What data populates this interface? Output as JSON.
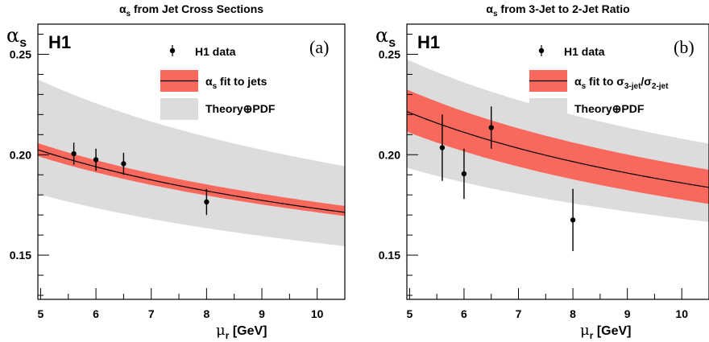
{
  "chart_data": [
    {
      "type": "line",
      "title": "αs from Jet Cross Sections",
      "ylabel": "αs",
      "xlabel": "μr [GeV]",
      "experiment": "H1",
      "panel_tag": "(a)",
      "xlim": [
        4.95,
        10.5
      ],
      "ylim": [
        0.128,
        0.265
      ],
      "yticks": [
        "0.15",
        "0.20",
        "0.25"
      ],
      "xticks": [
        "5",
        "6",
        "7",
        "8",
        "9",
        "10"
      ],
      "legend": [
        "H1 data",
        "αs fit to jets",
        "Theory⊕PDF"
      ],
      "legend_placement": "top-right",
      "data": {
        "x": [
          5.6,
          6.0,
          6.5,
          8.0
        ],
        "y": [
          0.2005,
          0.1975,
          0.1955,
          0.1765
        ],
        "err": [
          0.0055,
          0.0055,
          0.0055,
          0.0065
        ]
      },
      "fit": {
        "x": [
          4.95,
          10.5
        ],
        "central": [
          0.2025,
          0.1713
        ],
        "exp_band_lo": [
          0.1993,
          0.1695
        ],
        "exp_band_hi": [
          0.2058,
          0.1745
        ],
        "theory_band_lo": [
          0.1805,
          0.1545
        ],
        "theory_band_hi": [
          0.2375,
          0.1943
        ]
      },
      "colors": {
        "exp_band": "#f9685c",
        "theory_band": "#dcdcdc",
        "line": "#000000"
      }
    },
    {
      "type": "line",
      "title": "αs from 3-Jet to 2-Jet Ratio",
      "ylabel": "αs",
      "xlabel": "μr [GeV]",
      "experiment": "H1",
      "panel_tag": "(b)",
      "xlim": [
        4.95,
        10.5
      ],
      "ylim": [
        0.128,
        0.265
      ],
      "yticks": [
        "0.15",
        "0.20",
        "0.25"
      ],
      "xticks": [
        "5",
        "6",
        "7",
        "8",
        "9",
        "10"
      ],
      "legend": [
        "H1 data",
        "αs fit to σ3-jet/σ2-jet",
        "Theory⊕PDF"
      ],
      "legend_placement": "top-right",
      "data": {
        "x": [
          5.6,
          6.0,
          6.5,
          8.0
        ],
        "y": [
          0.2035,
          0.1905,
          0.2135,
          0.1675
        ],
        "err": [
          0.0165,
          0.0125,
          0.0105,
          0.0155
        ]
      },
      "fit": {
        "x": [
          4.95,
          10.5
        ],
        "central": [
          0.2215,
          0.1837
        ],
        "exp_band_lo": [
          0.2115,
          0.1755
        ],
        "exp_band_hi": [
          0.2325,
          0.1925
        ],
        "theory_band_lo": [
          0.1935,
          0.1665
        ],
        "theory_band_hi": [
          0.2475,
          0.2055
        ]
      },
      "colors": {
        "exp_band": "#f9685c",
        "theory_band": "#dcdcdc",
        "line": "#000000"
      }
    }
  ]
}
